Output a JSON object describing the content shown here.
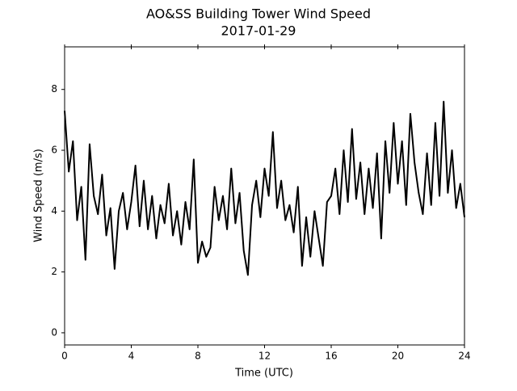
{
  "chart_data": {
    "type": "line",
    "title": "AO&SS Building Tower Wind Speed",
    "subtitle": "2017-01-29",
    "x_label": "Time (UTC)",
    "y_label": "Wind Speed (m/s)",
    "xlim": [
      0,
      24
    ],
    "xticks": [
      0,
      4,
      8,
      12,
      16,
      20,
      24
    ],
    "ylim": [
      -0.4,
      9.4
    ],
    "yticks": [
      0,
      2,
      4,
      6,
      8
    ],
    "grid": false,
    "color": "#000000",
    "x": [
      0,
      0.25,
      0.5,
      0.75,
      1,
      1.25,
      1.5,
      1.75,
      2,
      2.25,
      2.5,
      2.75,
      3,
      3.25,
      3.5,
      3.75,
      4,
      4.25,
      4.5,
      4.75,
      5,
      5.25,
      5.5,
      5.75,
      6,
      6.25,
      6.5,
      6.75,
      7,
      7.25,
      7.5,
      7.75,
      8,
      8.25,
      8.5,
      8.75,
      9,
      9.25,
      9.5,
      9.75,
      10,
      10.25,
      10.5,
      10.75,
      11,
      11.25,
      11.5,
      11.75,
      12,
      12.25,
      12.5,
      12.75,
      13,
      13.25,
      13.5,
      13.75,
      14,
      14.25,
      14.5,
      14.75,
      15,
      15.25,
      15.5,
      15.75,
      16,
      16.25,
      16.5,
      16.75,
      17,
      17.25,
      17.5,
      17.75,
      18,
      18.25,
      18.5,
      18.75,
      19,
      19.25,
      19.5,
      19.75,
      20,
      20.25,
      20.5,
      20.75,
      21,
      21.25,
      21.5,
      21.75,
      22,
      22.25,
      22.5,
      22.75,
      23,
      23.25,
      23.5,
      23.75,
      24
    ],
    "values": [
      7.3,
      5.3,
      6.3,
      3.7,
      4.8,
      2.4,
      6.2,
      4.5,
      3.9,
      5.2,
      3.2,
      4.1,
      2.1,
      4.0,
      4.6,
      3.4,
      4.3,
      5.5,
      3.5,
      5.0,
      3.4,
      4.5,
      3.1,
      4.2,
      3.6,
      4.9,
      3.2,
      4.0,
      2.9,
      4.3,
      3.4,
      5.7,
      2.3,
      3.0,
      2.5,
      2.8,
      4.8,
      3.7,
      4.5,
      3.4,
      5.4,
      3.6,
      4.6,
      2.7,
      1.9,
      4.2,
      5.0,
      3.8,
      5.4,
      4.5,
      6.6,
      4.1,
      5.0,
      3.7,
      4.2,
      3.3,
      4.8,
      2.2,
      3.8,
      2.5,
      4.0,
      3.1,
      2.2,
      4.3,
      4.5,
      5.4,
      3.9,
      6.0,
      4.3,
      6.7,
      4.4,
      5.6,
      3.9,
      5.4,
      4.1,
      5.9,
      3.1,
      6.3,
      4.6,
      6.9,
      4.9,
      6.3,
      4.2,
      7.2,
      5.6,
      4.6,
      3.9,
      5.9,
      4.2,
      6.9,
      4.5,
      7.6,
      4.6,
      6.0,
      4.1,
      4.9,
      3.8
    ]
  }
}
